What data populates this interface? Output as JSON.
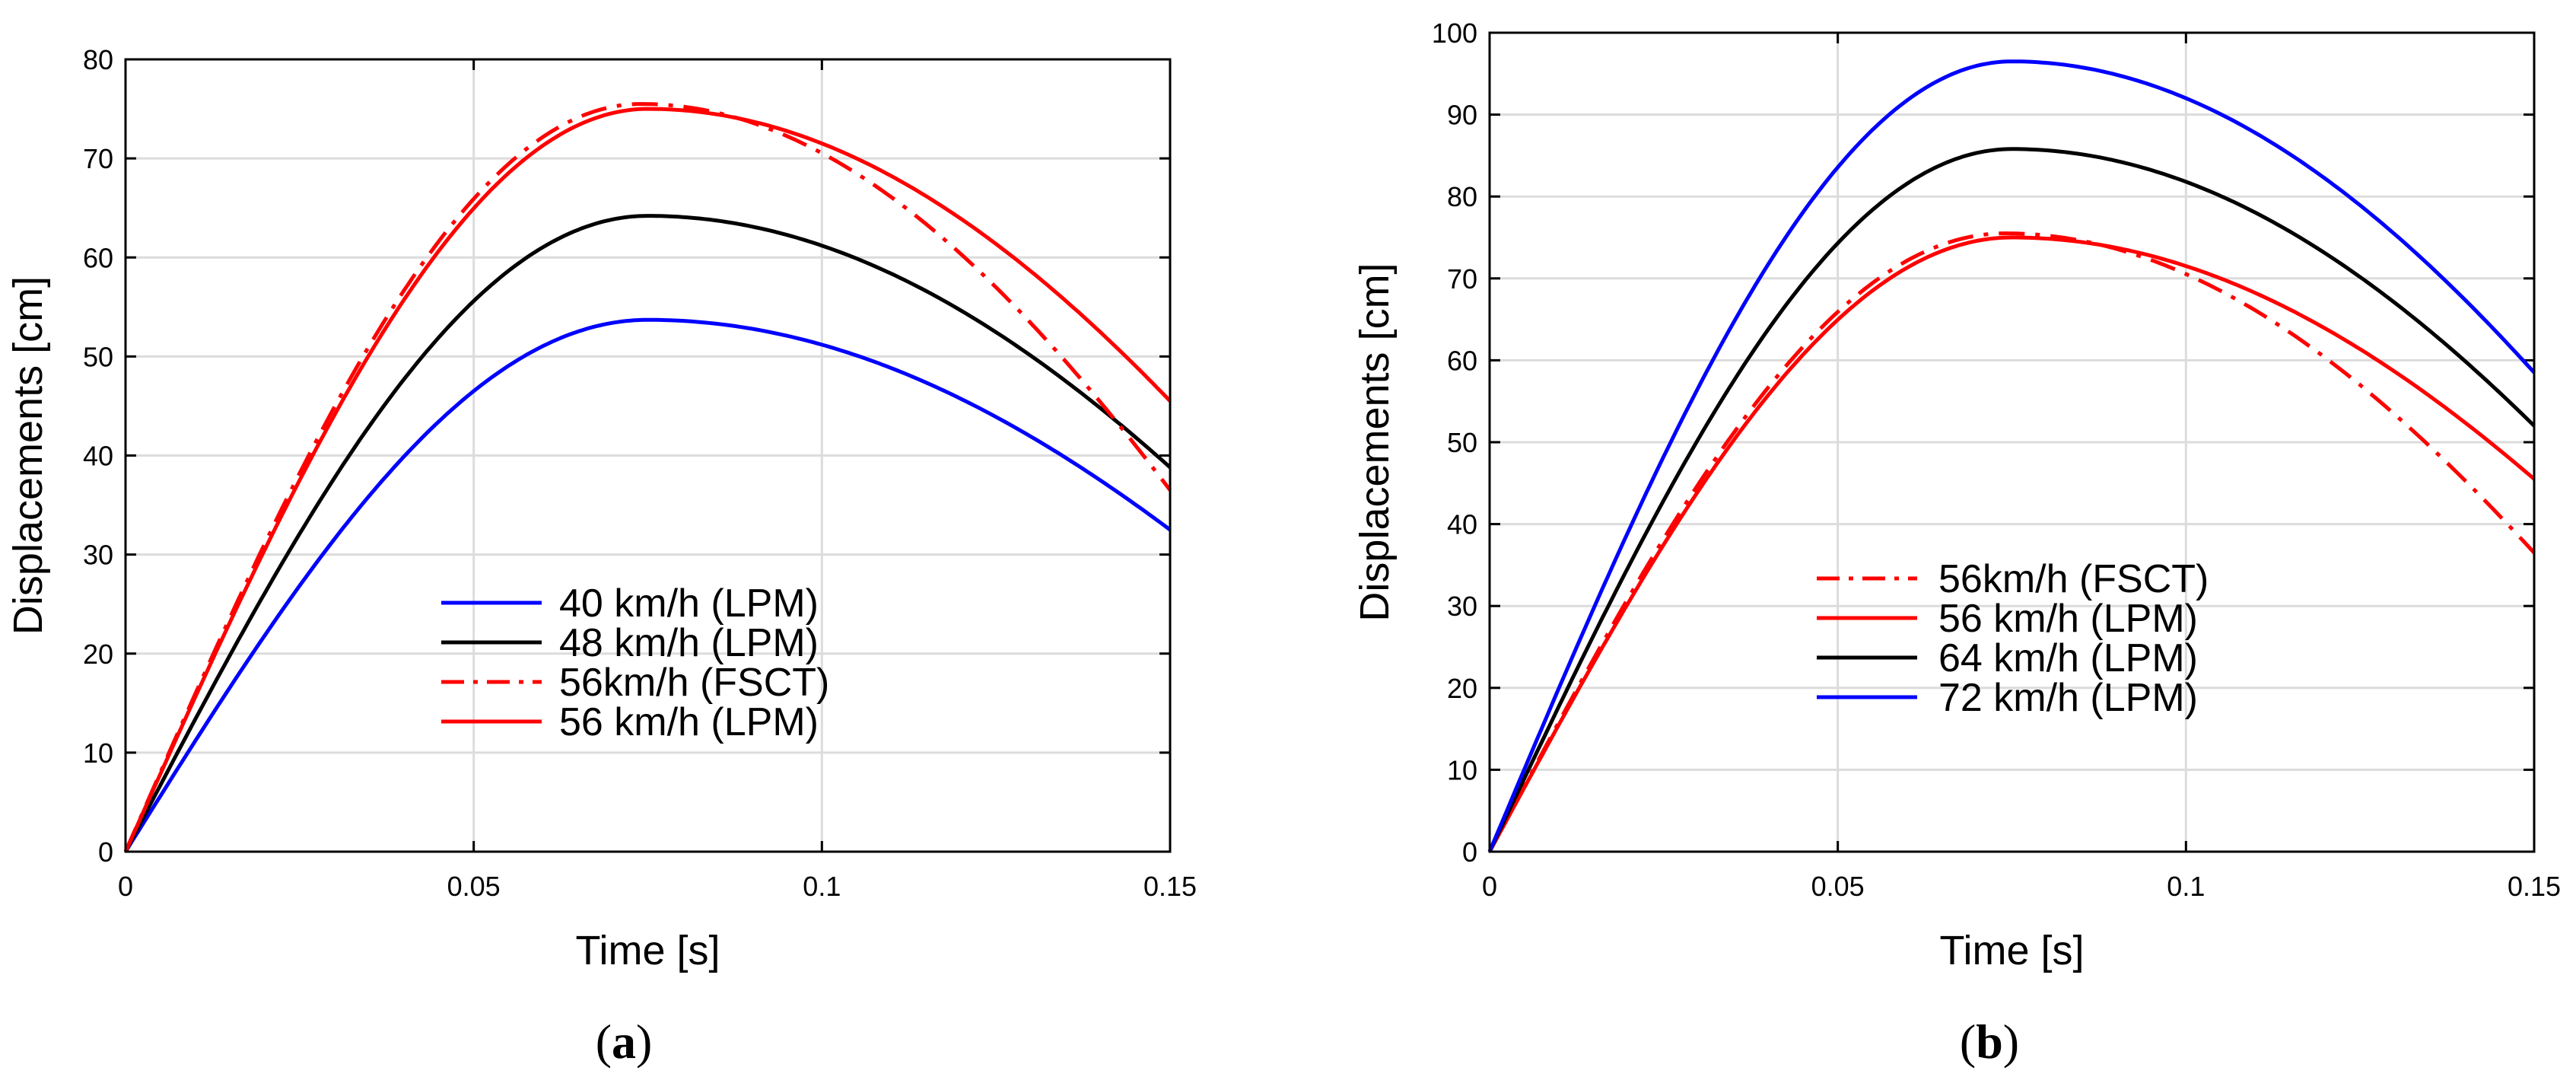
{
  "chart_data": [
    {
      "type": "line",
      "caption_open": "(",
      "caption_letter": "a",
      "caption_close": ")",
      "xlabel": "Time [s]",
      "ylabel": "Displacements [cm]",
      "xlim": [
        0,
        0.15
      ],
      "ylim": [
        0,
        80
      ],
      "xticks": [
        0,
        0.05,
        0.1,
        0.15
      ],
      "xtick_labels": [
        "0",
        "0.05",
        "0.1",
        "0.15"
      ],
      "yticks": [
        0,
        10,
        20,
        30,
        40,
        50,
        60,
        70,
        80
      ],
      "ytick_labels": [
        "0",
        "10",
        "20",
        "30",
        "40",
        "50",
        "60",
        "70",
        "80"
      ],
      "grid": true,
      "legend_position": "bottom-center",
      "series": [
        {
          "name": "40 km/h (LPM)",
          "color": "#0000ff",
          "style": "solid",
          "peak": 53.7,
          "peak_time": 0.075,
          "end_value": 32.5
        },
        {
          "name": "48 km/h (LPM)",
          "color": "#000000",
          "style": "solid",
          "peak": 64.2,
          "peak_time": 0.075,
          "end_value": 38.8
        },
        {
          "name": "56km/h (FSCT)",
          "color": "#ff0000",
          "style": "dashdot",
          "peak": 75.5,
          "peak_time": 0.074,
          "end_value": 36.5
        },
        {
          "name": "56 km/h (LPM)",
          "color": "#ff0000",
          "style": "solid",
          "peak": 75.0,
          "peak_time": 0.075,
          "end_value": 45.5
        }
      ]
    },
    {
      "type": "line",
      "caption_open": "(",
      "caption_letter": "b",
      "caption_close": ")",
      "xlabel": "Time [s]",
      "ylabel": "Displacements [cm]",
      "xlim": [
        0,
        0.15
      ],
      "ylim": [
        0,
        100
      ],
      "xticks": [
        0,
        0.05,
        0.1,
        0.15
      ],
      "xtick_labels": [
        "0",
        "0.05",
        "0.1",
        "0.15"
      ],
      "yticks": [
        0,
        10,
        20,
        30,
        40,
        50,
        60,
        70,
        80,
        90,
        100
      ],
      "ytick_labels": [
        "0",
        "10",
        "20",
        "30",
        "40",
        "50",
        "60",
        "70",
        "80",
        "90",
        "100"
      ],
      "grid": true,
      "legend_position": "center",
      "series": [
        {
          "name": "56km/h (FSCT)",
          "color": "#ff0000",
          "style": "dashdot",
          "peak": 75.5,
          "peak_time": 0.074,
          "end_value": 36.5
        },
        {
          "name": "56 km/h (LPM)",
          "color": "#ff0000",
          "style": "solid",
          "peak": 75.0,
          "peak_time": 0.075,
          "end_value": 45.5
        },
        {
          "name": "64 km/h (LPM)",
          "color": "#000000",
          "style": "solid",
          "peak": 85.8,
          "peak_time": 0.075,
          "end_value": 52.0
        },
        {
          "name": "72 km/h (LPM)",
          "color": "#0000ff",
          "style": "solid",
          "peak": 96.5,
          "peak_time": 0.075,
          "end_value": 58.5
        }
      ]
    }
  ]
}
